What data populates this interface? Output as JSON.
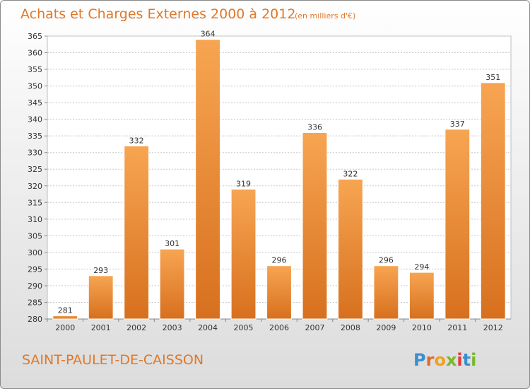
{
  "chart_data": {
    "type": "bar",
    "title": "Achats et Charges Externes 2000 à 2012",
    "subtitle": "(en milliers d'€)",
    "categories": [
      "2000",
      "2001",
      "2002",
      "2003",
      "2004",
      "2005",
      "2006",
      "2007",
      "2008",
      "2009",
      "2010",
      "2011",
      "2012"
    ],
    "values": [
      281,
      293,
      332,
      301,
      364,
      319,
      296,
      336,
      322,
      296,
      294,
      337,
      351
    ],
    "ylim": [
      280,
      365
    ],
    "yticks": [
      280,
      285,
      290,
      295,
      300,
      305,
      310,
      315,
      320,
      325,
      330,
      335,
      340,
      345,
      350,
      355,
      360,
      365
    ],
    "grid": true,
    "bar_color": "#f0943c"
  },
  "commune": "SAINT-PAULET-DE-CAISSON",
  "logo": {
    "letters": [
      "P",
      "r",
      "o",
      "x",
      "i",
      "t",
      "i"
    ],
    "colors": [
      "#3a8fd0",
      "#e06a2a",
      "#f0a020",
      "#7ab828",
      "#e03a3a",
      "#3a8fd0",
      "#7ab828"
    ]
  }
}
